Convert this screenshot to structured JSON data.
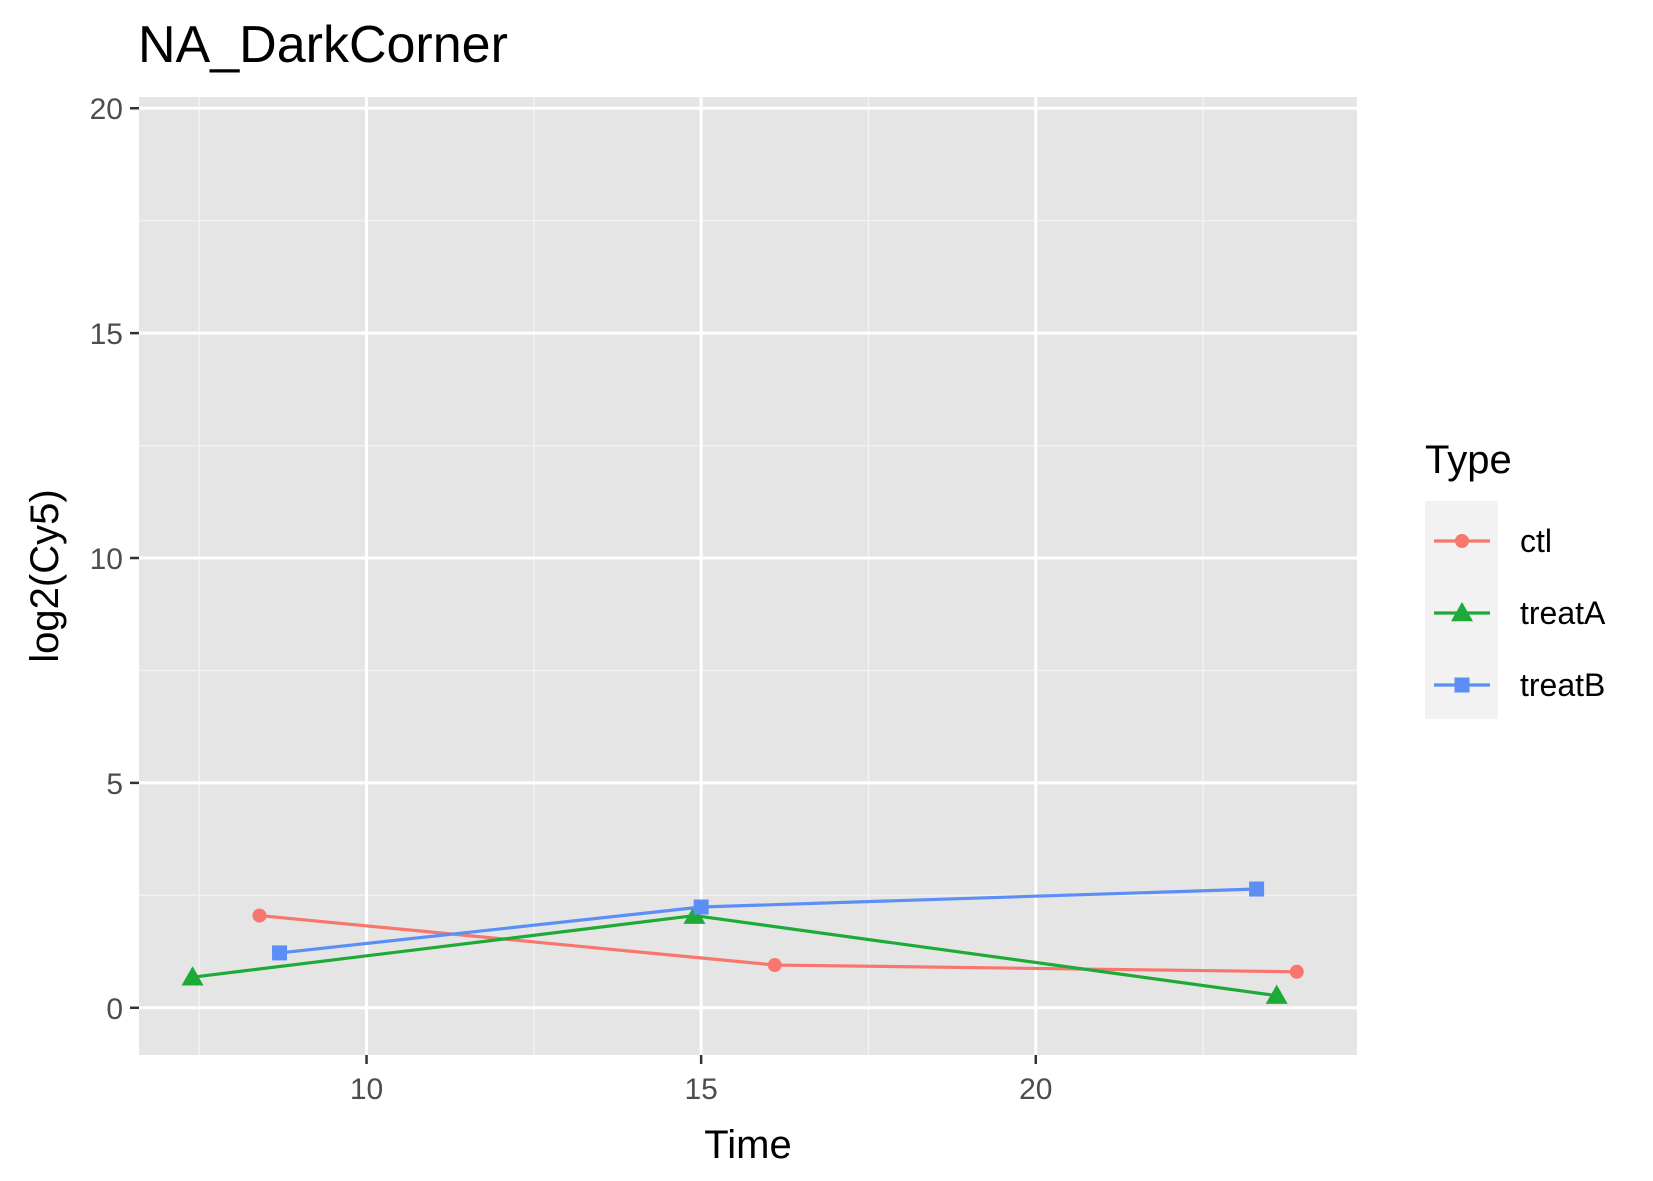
{
  "chart_data": {
    "type": "line",
    "title": "NA_DarkCorner",
    "xlabel": "Time",
    "ylabel": "log2(Cy5)",
    "xlim": [
      6.6,
      24.8
    ],
    "ylim": [
      -1.05,
      20.25
    ],
    "x_ticks": [
      10,
      15,
      20
    ],
    "x_tick_labels": [
      "10",
      "15",
      "20"
    ],
    "y_ticks": [
      0,
      5,
      10,
      15,
      20
    ],
    "y_tick_labels": [
      "0",
      "5",
      "10",
      "15",
      "20"
    ],
    "grid": true,
    "background": "#e5e5e5",
    "legend": {
      "title": "Type",
      "position": "right"
    },
    "series": [
      {
        "name": "ctl",
        "color": "#f8766d",
        "marker": "circle",
        "points": [
          {
            "x": 8.4,
            "y": 2.05
          },
          {
            "x": 16.1,
            "y": 0.95
          },
          {
            "x": 23.9,
            "y": 0.8
          }
        ]
      },
      {
        "name": "treatA",
        "color": "#1eaa36",
        "marker": "triangle",
        "points": [
          {
            "x": 7.4,
            "y": 0.68
          },
          {
            "x": 14.9,
            "y": 2.05
          },
          {
            "x": 23.6,
            "y": 0.27
          }
        ]
      },
      {
        "name": "treatB",
        "color": "#5c8ff5",
        "marker": "square",
        "points": [
          {
            "x": 8.7,
            "y": 1.22
          },
          {
            "x": 15.0,
            "y": 2.24
          },
          {
            "x": 23.3,
            "y": 2.64
          }
        ]
      }
    ]
  }
}
